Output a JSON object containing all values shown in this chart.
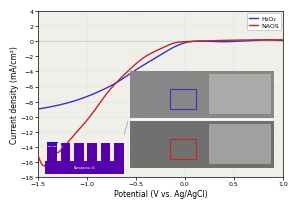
{
  "title": "",
  "xlabel": "Potential (V vs. Ag/AgCl)",
  "ylabel": "Current density (mA/cm²)",
  "xlim": [
    -1.5,
    1.0
  ],
  "ylim": [
    -18,
    4
  ],
  "yticks": [
    4,
    2,
    0,
    -2,
    -4,
    -6,
    -8,
    -10,
    -12,
    -14,
    -16,
    -18
  ],
  "xticks": [
    -1.5,
    -1.0,
    -0.5,
    0.0,
    0.5,
    1.0
  ],
  "legend_entries": [
    "H₂O₂",
    "NAOS"
  ],
  "line_colors": [
    "#3333cc",
    "#cc2222"
  ],
  "bg_color": "#f0f0eb",
  "plot_bg": "#ffffff",
  "blue_pts_x": [
    -1.5,
    -1.3,
    -1.1,
    -0.9,
    -0.7,
    -0.5,
    -0.3,
    -0.1,
    0.0,
    0.3,
    0.6,
    1.0
  ],
  "blue_pts_y": [
    -9.0,
    -8.5,
    -7.8,
    -6.8,
    -5.5,
    -3.8,
    -2.2,
    -0.7,
    -0.2,
    -0.05,
    0.05,
    0.1
  ],
  "red_pts_x": [
    -1.5,
    -1.47,
    -1.44,
    -1.41,
    -1.38,
    -1.35,
    -1.3,
    -1.2,
    -1.1,
    -1.0,
    -0.9,
    -0.8,
    -0.7,
    -0.6,
    -0.5,
    -0.4,
    -0.3,
    -0.2,
    -0.1,
    0.0,
    0.2,
    0.5,
    1.0
  ],
  "red_pts_y": [
    -15.0,
    -16.0,
    -16.5,
    -16.3,
    -15.8,
    -15.2,
    -14.8,
    -13.5,
    -12.0,
    -10.5,
    -8.8,
    -7.0,
    -5.5,
    -4.2,
    -3.0,
    -2.0,
    -1.3,
    -0.7,
    -0.2,
    -0.05,
    0.05,
    0.15,
    0.2
  ],
  "schematic_pillar_color": "#5500aa",
  "schematic_bg": "#100820",
  "schematic_base_color": "#5500aa"
}
